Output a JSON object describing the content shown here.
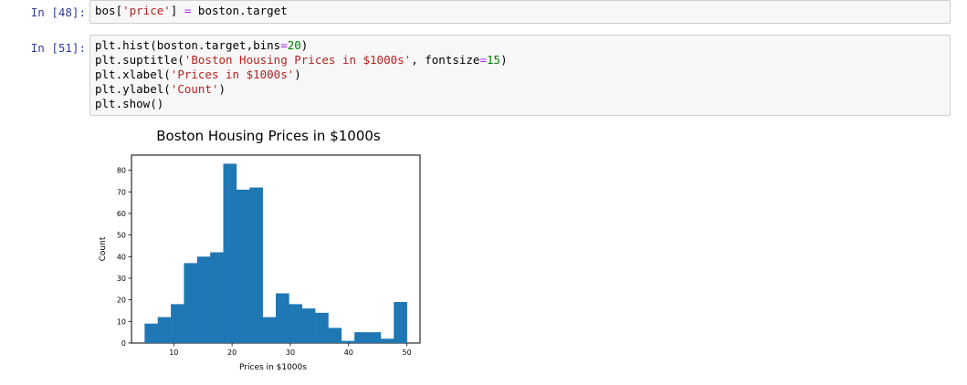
{
  "cells": [
    {
      "prompt": "In [48]:",
      "code": [
        [
          [
            "bos[",
            ""
          ],
          [
            "'price'",
            "s"
          ],
          [
            "] ",
            ""
          ],
          [
            "=",
            "o"
          ],
          [
            " boston.target",
            ""
          ]
        ]
      ]
    },
    {
      "prompt": "In [51]:",
      "code": [
        [
          [
            "plt.hist(boston.target,bins",
            ""
          ],
          [
            "=",
            "o"
          ],
          [
            "20",
            "n"
          ],
          [
            ")",
            ""
          ]
        ],
        [
          [
            "plt.suptitle(",
            ""
          ],
          [
            "'Boston Housing Prices in $1000s'",
            "s"
          ],
          [
            ", fontsize",
            ""
          ],
          [
            "=",
            "o"
          ],
          [
            "15",
            "n"
          ],
          [
            ")",
            ""
          ]
        ],
        [
          [
            "plt.xlabel(",
            ""
          ],
          [
            "'Prices in $1000s'",
            "s"
          ],
          [
            ")",
            ""
          ]
        ],
        [
          [
            "plt.ylabel(",
            ""
          ],
          [
            "'Count'",
            "s"
          ],
          [
            ")",
            ""
          ]
        ],
        [
          [
            "plt.show()",
            ""
          ]
        ]
      ]
    }
  ],
  "chart_data": {
    "type": "bar",
    "title": "Boston Housing Prices in $1000s",
    "xlabel": "Prices in $1000s",
    "ylabel": "Count",
    "bin_edges": [
      5.0,
      7.25,
      9.5,
      11.75,
      14.0,
      16.25,
      18.5,
      20.75,
      23.0,
      25.25,
      27.5,
      29.75,
      32.0,
      34.25,
      36.5,
      38.75,
      41.0,
      43.25,
      45.5,
      47.75,
      50.0
    ],
    "values": [
      9,
      12,
      18,
      37,
      40,
      42,
      83,
      71,
      72,
      12,
      23,
      18,
      16,
      14,
      7,
      1,
      5,
      5,
      2,
      19
    ],
    "xlim": [
      2.75,
      52.25
    ],
    "ylim": [
      0,
      87
    ],
    "xticks": [
      10,
      20,
      30,
      40,
      50
    ],
    "yticks": [
      0,
      10,
      20,
      30,
      40,
      50,
      60,
      70,
      80
    ],
    "bar_color": "#1f77b4",
    "grid": false
  }
}
